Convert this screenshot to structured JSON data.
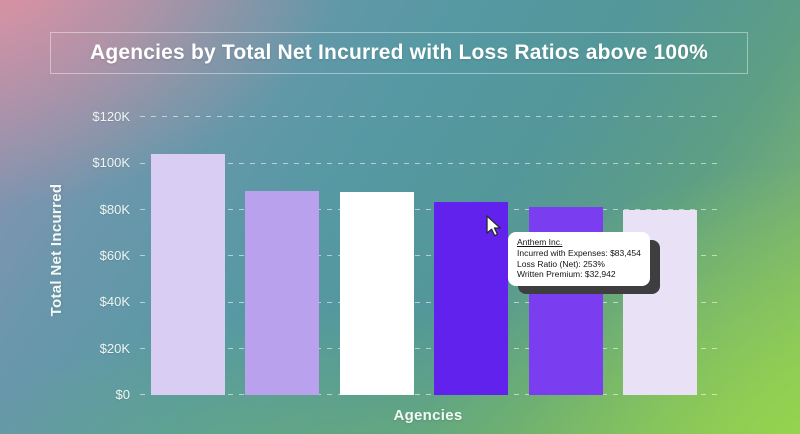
{
  "title": "Agencies by Total Net Incurred with Loss Ratios above 100%",
  "chart_data": {
    "type": "bar",
    "title": "Agencies by Total Net Incurred with Loss Ratios above 100%",
    "xlabel": "Agencies",
    "ylabel": "Total Net Incurred",
    "ylim": [
      0,
      120000
    ],
    "ytick_step": 20000,
    "ytick_labels": [
      "$0",
      "$20K",
      "$40K",
      "$60K",
      "$80K",
      "$100K",
      "$120K"
    ],
    "grid": "horizontal-dashed",
    "legend": "none",
    "x_category_labels_shown": false,
    "bars": [
      {
        "label": "",
        "value": 104000,
        "color": "#d9cdf3"
      },
      {
        "label": "",
        "value": 88000,
        "color": "#b9a1ee"
      },
      {
        "label": "",
        "value": 87600,
        "color": "#ffffff"
      },
      {
        "label": "Anthem Inc.",
        "value": 83454,
        "color": "#6222ee",
        "hovered": true
      },
      {
        "label": "",
        "value": 81000,
        "color": "#7a3df0"
      },
      {
        "label": "",
        "value": 80000,
        "color": "#e9e2f7"
      }
    ]
  },
  "tooltip": {
    "title": "Anthem Inc.",
    "lines": [
      "Incurred with Expenses: $83,454",
      "Loss Ratio (Net): 253%",
      "Written Premium: $32,942"
    ]
  },
  "colors": {
    "bg_top_left_pink": "#ec929d",
    "bg_teal": "#54989f",
    "bg_bottom_right_green": "#8cc763",
    "axis_text": "#eef6f3",
    "title_text": "#ffffff",
    "tooltip_bg": "#ffffff",
    "tooltip_shadow": "#3e3e40"
  }
}
